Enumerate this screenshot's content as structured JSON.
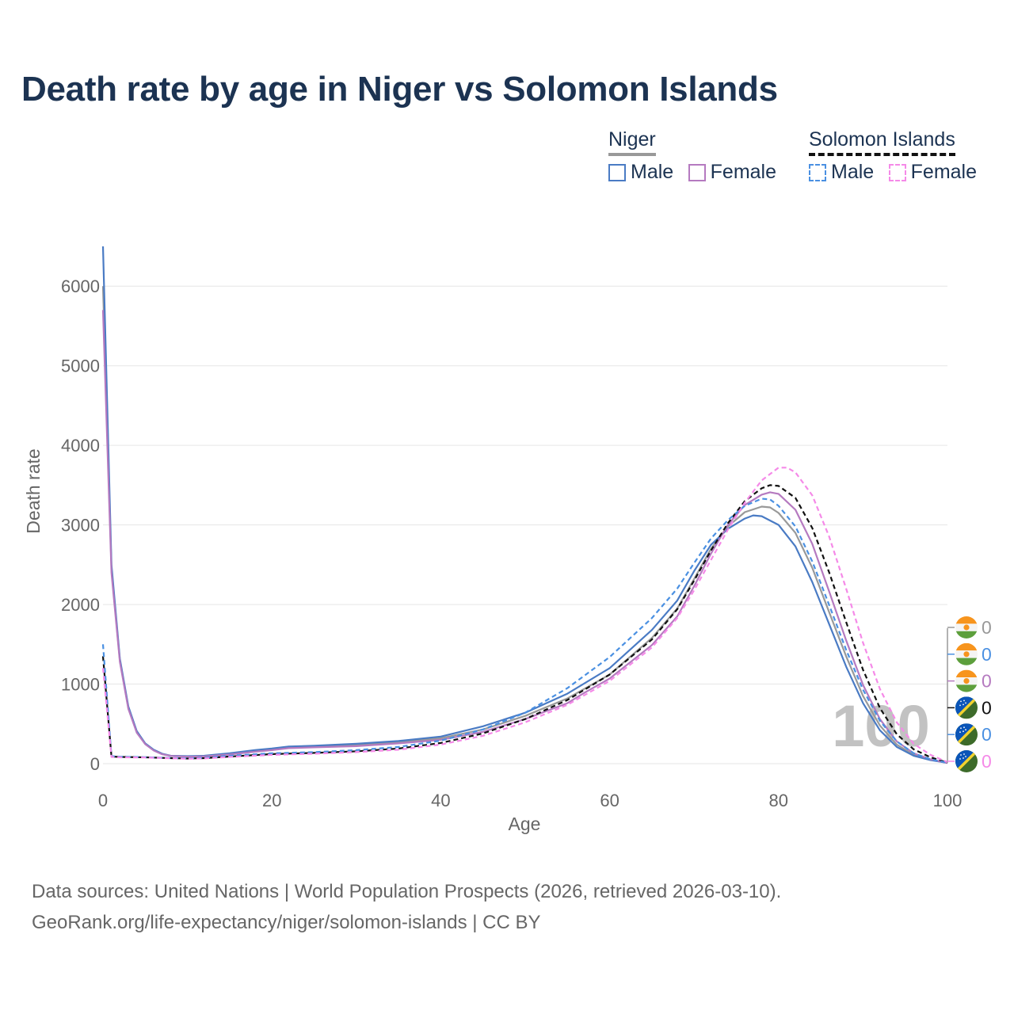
{
  "title": "Death rate by age in Niger vs Solomon Islands",
  "legend": {
    "groups": [
      {
        "name": "Niger",
        "line_color": "#999999",
        "dashed": false,
        "items": [
          {
            "label": "Male",
            "color": "#4a7bc4"
          },
          {
            "label": "Female",
            "color": "#b57ac0"
          }
        ]
      },
      {
        "name": "Solomon Islands",
        "line_color": "#111111",
        "dashed": true,
        "items": [
          {
            "label": "Male",
            "color": "#4a90e2"
          },
          {
            "label": "Female",
            "color": "#f58ae8"
          }
        ]
      }
    ]
  },
  "footer": {
    "line1": "Data sources: United Nations | World Population Prospects (2026, retrieved 2026-03-10).",
    "line2": "GeoRank.org/life-expectancy/niger/solomon-islands | CC BY"
  },
  "year_watermark": "100",
  "end_labels": [
    {
      "flag": "niger",
      "value": "0",
      "color": "#999999"
    },
    {
      "flag": "niger",
      "value": "0",
      "color": "#4a90e2"
    },
    {
      "flag": "niger",
      "value": "0",
      "color": "#b57ac0"
    },
    {
      "flag": "solomon",
      "value": "0",
      "color": "#111111"
    },
    {
      "flag": "solomon",
      "value": "0",
      "color": "#4a90e2"
    },
    {
      "flag": "solomon",
      "value": "0",
      "color": "#f58ae8"
    }
  ],
  "chart_data": {
    "type": "line",
    "title": "Death rate by age in Niger vs Solomon Islands",
    "xlabel": "Age",
    "ylabel": "Death rate",
    "xlim": [
      0,
      100
    ],
    "ylim": [
      0,
      6500
    ],
    "x_ticks": [
      0,
      20,
      40,
      60,
      80,
      100
    ],
    "y_ticks": [
      0,
      1000,
      2000,
      3000,
      4000,
      5000,
      6000
    ],
    "grid": true,
    "series": [
      {
        "name": "Niger (total)",
        "color": "#999999",
        "dash": false,
        "points": [
          [
            0,
            6000
          ],
          [
            1,
            2450
          ],
          [
            2,
            1300
          ],
          [
            3,
            700
          ],
          [
            4,
            400
          ],
          [
            5,
            250
          ],
          [
            6,
            170
          ],
          [
            7,
            120
          ],
          [
            8,
            100
          ],
          [
            10,
            90
          ],
          [
            12,
            95
          ],
          [
            15,
            120
          ],
          [
            18,
            160
          ],
          [
            20,
            180
          ],
          [
            22,
            200
          ],
          [
            25,
            210
          ],
          [
            30,
            230
          ],
          [
            35,
            270
          ],
          [
            40,
            320
          ],
          [
            45,
            430
          ],
          [
            50,
            600
          ],
          [
            55,
            820
          ],
          [
            60,
            1120
          ],
          [
            65,
            1580
          ],
          [
            68,
            1950
          ],
          [
            70,
            2320
          ],
          [
            72,
            2700
          ],
          [
            74,
            2980
          ],
          [
            76,
            3160
          ],
          [
            78,
            3230
          ],
          [
            79,
            3220
          ],
          [
            80,
            3150
          ],
          [
            82,
            2900
          ],
          [
            84,
            2460
          ],
          [
            86,
            1900
          ],
          [
            88,
            1350
          ],
          [
            90,
            850
          ],
          [
            92,
            480
          ],
          [
            94,
            240
          ],
          [
            96,
            110
          ],
          [
            98,
            50
          ],
          [
            100,
            10
          ]
        ]
      },
      {
        "name": "Niger Male",
        "color": "#4a7bc4",
        "dash": false,
        "points": [
          [
            0,
            6500
          ],
          [
            1,
            2500
          ],
          [
            2,
            1320
          ],
          [
            3,
            720
          ],
          [
            4,
            410
          ],
          [
            5,
            255
          ],
          [
            6,
            175
          ],
          [
            7,
            125
          ],
          [
            8,
            100
          ],
          [
            10,
            95
          ],
          [
            12,
            100
          ],
          [
            15,
            130
          ],
          [
            18,
            170
          ],
          [
            20,
            190
          ],
          [
            22,
            215
          ],
          [
            25,
            225
          ],
          [
            30,
            250
          ],
          [
            35,
            285
          ],
          [
            40,
            340
          ],
          [
            45,
            470
          ],
          [
            50,
            640
          ],
          [
            55,
            880
          ],
          [
            60,
            1200
          ],
          [
            65,
            1680
          ],
          [
            68,
            2050
          ],
          [
            70,
            2420
          ],
          [
            72,
            2750
          ],
          [
            74,
            2950
          ],
          [
            76,
            3080
          ],
          [
            77,
            3120
          ],
          [
            78,
            3110
          ],
          [
            80,
            3000
          ],
          [
            82,
            2730
          ],
          [
            84,
            2280
          ],
          [
            86,
            1750
          ],
          [
            88,
            1220
          ],
          [
            90,
            760
          ],
          [
            92,
            420
          ],
          [
            94,
            210
          ],
          [
            96,
            100
          ],
          [
            98,
            45
          ],
          [
            100,
            10
          ]
        ]
      },
      {
        "name": "Niger Female",
        "color": "#b57ac0",
        "dash": false,
        "points": [
          [
            0,
            5700
          ],
          [
            1,
            2400
          ],
          [
            2,
            1280
          ],
          [
            3,
            690
          ],
          [
            4,
            390
          ],
          [
            5,
            245
          ],
          [
            6,
            165
          ],
          [
            7,
            118
          ],
          [
            8,
            98
          ],
          [
            10,
            88
          ],
          [
            12,
            92
          ],
          [
            15,
            115
          ],
          [
            18,
            150
          ],
          [
            20,
            170
          ],
          [
            22,
            195
          ],
          [
            25,
            205
          ],
          [
            30,
            220
          ],
          [
            35,
            255
          ],
          [
            40,
            300
          ],
          [
            45,
            400
          ],
          [
            50,
            560
          ],
          [
            55,
            760
          ],
          [
            57,
            890
          ],
          [
            60,
            1070
          ],
          [
            65,
            1490
          ],
          [
            68,
            1850
          ],
          [
            70,
            2230
          ],
          [
            72,
            2640
          ],
          [
            74,
            3000
          ],
          [
            76,
            3250
          ],
          [
            78,
            3380
          ],
          [
            79,
            3410
          ],
          [
            80,
            3390
          ],
          [
            82,
            3190
          ],
          [
            84,
            2760
          ],
          [
            86,
            2160
          ],
          [
            88,
            1550
          ],
          [
            90,
            990
          ],
          [
            92,
            560
          ],
          [
            94,
            280
          ],
          [
            96,
            130
          ],
          [
            98,
            55
          ],
          [
            100,
            10
          ]
        ]
      },
      {
        "name": "Solomon Islands (total)",
        "color": "#111111",
        "dash": true,
        "points": [
          [
            0,
            1350
          ],
          [
            1,
            90
          ],
          [
            2,
            85
          ],
          [
            5,
            80
          ],
          [
            8,
            70
          ],
          [
            10,
            65
          ],
          [
            12,
            70
          ],
          [
            15,
            90
          ],
          [
            20,
            120
          ],
          [
            25,
            135
          ],
          [
            30,
            155
          ],
          [
            35,
            190
          ],
          [
            40,
            260
          ],
          [
            45,
            380
          ],
          [
            50,
            560
          ],
          [
            55,
            800
          ],
          [
            60,
            1120
          ],
          [
            65,
            1560
          ],
          [
            68,
            1940
          ],
          [
            70,
            2300
          ],
          [
            72,
            2680
          ],
          [
            74,
            3020
          ],
          [
            76,
            3300
          ],
          [
            78,
            3460
          ],
          [
            79,
            3500
          ],
          [
            80,
            3490
          ],
          [
            82,
            3340
          ],
          [
            84,
            2960
          ],
          [
            86,
            2400
          ],
          [
            88,
            1780
          ],
          [
            90,
            1180
          ],
          [
            92,
            700
          ],
          [
            94,
            370
          ],
          [
            96,
            180
          ],
          [
            98,
            80
          ],
          [
            100,
            15
          ]
        ]
      },
      {
        "name": "Solomon Islands Male",
        "color": "#4a90e2",
        "dash": true,
        "points": [
          [
            0,
            1500
          ],
          [
            1,
            95
          ],
          [
            2,
            88
          ],
          [
            5,
            82
          ],
          [
            8,
            72
          ],
          [
            10,
            68
          ],
          [
            12,
            75
          ],
          [
            15,
            100
          ],
          [
            20,
            130
          ],
          [
            25,
            145
          ],
          [
            30,
            170
          ],
          [
            35,
            210
          ],
          [
            40,
            290
          ],
          [
            45,
            430
          ],
          [
            50,
            640
          ],
          [
            55,
            950
          ],
          [
            60,
            1340
          ],
          [
            65,
            1830
          ],
          [
            68,
            2200
          ],
          [
            70,
            2520
          ],
          [
            72,
            2830
          ],
          [
            74,
            3060
          ],
          [
            76,
            3240
          ],
          [
            78,
            3330
          ],
          [
            79,
            3320
          ],
          [
            80,
            3240
          ],
          [
            82,
            2980
          ],
          [
            84,
            2540
          ],
          [
            86,
            1990
          ],
          [
            88,
            1430
          ],
          [
            90,
            930
          ],
          [
            92,
            540
          ],
          [
            94,
            280
          ],
          [
            96,
            130
          ],
          [
            98,
            55
          ],
          [
            100,
            12
          ]
        ]
      },
      {
        "name": "Solomon Islands Female",
        "color": "#f58ae8",
        "dash": true,
        "points": [
          [
            0,
            1200
          ],
          [
            1,
            85
          ],
          [
            2,
            80
          ],
          [
            5,
            78
          ],
          [
            8,
            68
          ],
          [
            10,
            62
          ],
          [
            12,
            66
          ],
          [
            15,
            85
          ],
          [
            20,
            110
          ],
          [
            25,
            125
          ],
          [
            30,
            145
          ],
          [
            35,
            175
          ],
          [
            40,
            240
          ],
          [
            45,
            350
          ],
          [
            50,
            520
          ],
          [
            55,
            740
          ],
          [
            60,
            1040
          ],
          [
            65,
            1460
          ],
          [
            68,
            1830
          ],
          [
            70,
            2180
          ],
          [
            72,
            2560
          ],
          [
            74,
            2940
          ],
          [
            76,
            3280
          ],
          [
            78,
            3560
          ],
          [
            80,
            3720
          ],
          [
            81,
            3720
          ],
          [
            82,
            3660
          ],
          [
            84,
            3370
          ],
          [
            86,
            2850
          ],
          [
            88,
            2200
          ],
          [
            90,
            1520
          ],
          [
            92,
            940
          ],
          [
            94,
            520
          ],
          [
            96,
            250
          ],
          [
            98,
            110
          ],
          [
            100,
            20
          ]
        ]
      }
    ]
  }
}
